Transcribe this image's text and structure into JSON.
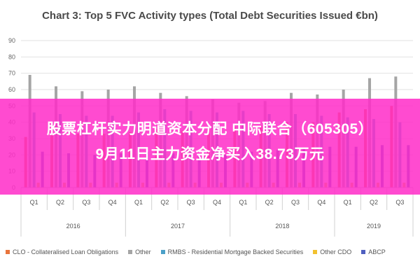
{
  "chart_data": {
    "type": "bar",
    "title": "Chart 3: Top 5 FVC Activity types (Total Debt Securities Issued €bn)",
    "xlabel": "",
    "ylabel": "",
    "ylim": [
      0,
      90
    ],
    "yticks": [
      0,
      10,
      20,
      30,
      40,
      50,
      60,
      70,
      80,
      90
    ],
    "grid": true,
    "legend_position": "bottom",
    "quarters": [
      "Q1",
      "Q2",
      "Q3",
      "Q4",
      "Q1",
      "Q2",
      "Q3",
      "Q4",
      "Q1",
      "Q2",
      "Q3",
      "Q4",
      "Q1",
      "Q2",
      "Q3"
    ],
    "years": [
      {
        "label": "2016",
        "count": 4
      },
      {
        "label": "2017",
        "count": 4
      },
      {
        "label": "2018",
        "count": 4
      },
      {
        "label": "2019",
        "count": 3
      }
    ],
    "series": [
      {
        "name": "CLO - Collateralised Loan Obligations",
        "color": "#e8743b",
        "values": [
          31,
          32,
          33,
          33,
          34,
          36,
          35,
          36,
          37,
          38,
          40,
          40,
          46,
          48,
          50
        ]
      },
      {
        "name": "Other",
        "color": "#a5a5a5",
        "values": [
          69,
          62,
          59,
          60,
          62,
          58,
          56,
          54,
          52,
          53,
          58,
          57,
          60,
          67,
          68
        ]
      },
      {
        "name": "RMBS - Residential Mortgage Backed Securities",
        "color": "#4ba0c8",
        "values": [
          46,
          45,
          44,
          44,
          46,
          48,
          47,
          46,
          47,
          45,
          45,
          44,
          43,
          42,
          40
        ]
      },
      {
        "name": "Other CDO",
        "color": "#f2c12e",
        "values": [
          3,
          3,
          3,
          3,
          3,
          3,
          3,
          3,
          3,
          3,
          3,
          3,
          3,
          3,
          3
        ]
      },
      {
        "name": "ABCP",
        "color": "#4f5fbf",
        "values": [
          22,
          21,
          20,
          21,
          22,
          21,
          20,
          20,
          22,
          23,
          24,
          25,
          25,
          26,
          26
        ]
      }
    ]
  },
  "overlay": {
    "line1": "股票杠杆实力明道资本分配 中际联合（605305）",
    "line2": "9月11日主力资金净买入38.73万元"
  }
}
